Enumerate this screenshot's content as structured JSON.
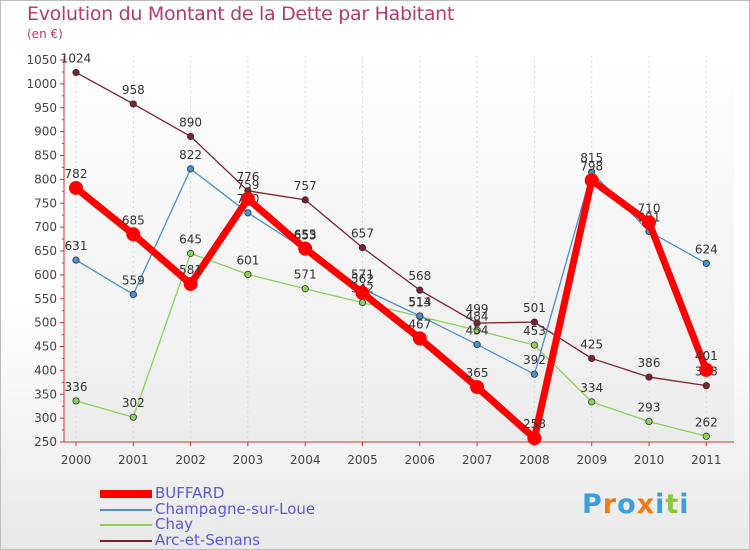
{
  "chart_data": {
    "type": "line",
    "title": "Evolution du Montant de la Dette par Habitant",
    "subtitle": "(en €)",
    "x": [
      "2000",
      "2001",
      "2002",
      "2003",
      "2004",
      "2005",
      "2006",
      "2007",
      "2008",
      "2009",
      "2010",
      "2011"
    ],
    "yticks": [
      250,
      300,
      350,
      400,
      450,
      500,
      550,
      600,
      650,
      700,
      750,
      800,
      850,
      900,
      950,
      1000,
      1050
    ],
    "ylim": [
      250,
      1050
    ],
    "series": [
      {
        "name": "Arc-et-Senans",
        "color": "#7a2230",
        "values": [
          1024,
          958,
          890,
          776,
          757,
          657,
          568,
          499,
          501,
          425,
          386,
          368
        ],
        "labels": [
          "1024",
          "958",
          "890",
          "776",
          "757",
          "657",
          "568",
          "499",
          "501",
          "425",
          "386",
          "368"
        ]
      },
      {
        "name": "Chay",
        "color": "#8fd15a",
        "values": [
          336,
          302,
          645,
          601,
          571,
          542,
          513,
          484,
          453,
          334,
          293,
          262
        ],
        "labels": [
          "336",
          "302",
          "645",
          "601",
          "571",
          "542",
          "513",
          "484",
          "453",
          "334",
          "293",
          "262"
        ]
      },
      {
        "name": "Champagne-sur-Loue",
        "color": "#4a8fcf",
        "values": [
          631,
          559,
          822,
          730,
          653,
          571,
          514,
          454,
          392,
          815,
          691,
          624
        ],
        "labels": [
          "631",
          "559",
          "822",
          "730",
          "653",
          "571",
          "514",
          "454",
          "392",
          "815",
          "691",
          "624"
        ]
      },
      {
        "name": "BUFFARD",
        "color": "#ff0000",
        "values": [
          782,
          685,
          581,
          759,
          655,
          562,
          467,
          365,
          258,
          798,
          710,
          401
        ],
        "labels": [
          "782",
          "685",
          "581",
          "759",
          "655",
          "562",
          "467",
          "365",
          "258",
          "798",
          "710",
          "401"
        ]
      }
    ],
    "legend": [
      "BUFFARD",
      "Champagne-sur-Loue",
      "Chay",
      "Arc-et-Senans"
    ],
    "legend_position": "bottom-left"
  },
  "logo_text": "Proxiti"
}
